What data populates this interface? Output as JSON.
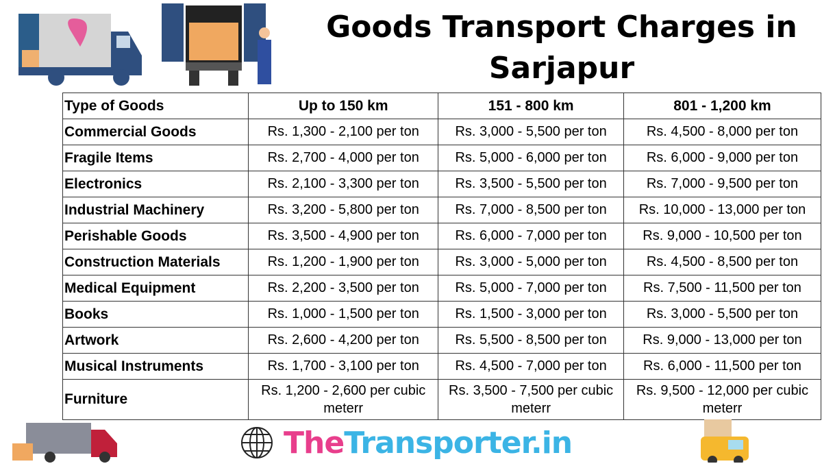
{
  "title": "Goods Transport Charges in Sarjapur",
  "table": {
    "headers": [
      "Type of Goods",
      "Up to 150 km",
      "151 - 800 km",
      "801 - 1,200 km"
    ],
    "rows": [
      [
        "Commercial Goods",
        "Rs. 1,300 - 2,100 per ton",
        "Rs. 3,000 - 5,500 per ton",
        "Rs. 4,500 - 8,000 per ton"
      ],
      [
        "Fragile Items",
        "Rs. 2,700 - 4,000 per ton",
        "Rs. 5,000 - 6,000 per ton",
        "Rs. 6,000 - 9,000 per ton"
      ],
      [
        "Electronics",
        "Rs. 2,100 - 3,300 per ton",
        "Rs. 3,500 - 5,500 per ton",
        "Rs. 7,000 - 9,500 per ton"
      ],
      [
        "Industrial Machinery",
        "Rs. 3,200 - 5,800 per ton",
        "Rs. 7,000 - 8,500 per ton",
        "Rs. 10,000 - 13,000 per ton"
      ],
      [
        "Perishable Goods",
        "Rs. 3,500 - 4,900 per ton",
        "Rs. 6,000 - 7,000 per ton",
        "Rs. 9,000 - 10,500 per ton"
      ],
      [
        "Construction Materials",
        "Rs. 1,200 - 1,900 per ton",
        "Rs. 3,000 - 5,000 per ton",
        "Rs. 4,500 - 8,500 per ton"
      ],
      [
        "Medical Equipment",
        "Rs. 2,200 - 3,500 per ton",
        "Rs. 5,000 - 7,000 per ton",
        "Rs. 7,500 - 11,500 per ton"
      ],
      [
        "Books",
        "Rs. 1,000 - 1,500 per ton",
        "Rs. 1,500 - 3,000 per ton",
        "Rs. 3,000 - 5,500 per ton"
      ],
      [
        "Artwork",
        "Rs. 2,600 - 4,200 per ton",
        "Rs. 5,500 - 8,500 per ton",
        "Rs. 9,000 - 13,000 per ton"
      ],
      [
        "Musical Instruments",
        "Rs. 1,700 - 3,100 per ton",
        "Rs. 4,500 - 7,000 per ton",
        "Rs. 6,000 - 11,500 per ton"
      ],
      [
        "Furniture",
        "Rs. 1,200 - 2,600 per cubic meterr",
        "Rs. 3,500 - 7,500 per cubic meterr",
        "Rs. 9,500 - 12,000 per cubic meterr"
      ]
    ]
  },
  "brand": {
    "part1": "The",
    "part2": "Transporter.in",
    "icon": "globe-icon",
    "colors": {
      "part1": "#e83e8c",
      "part2": "#3bb4e5"
    }
  }
}
